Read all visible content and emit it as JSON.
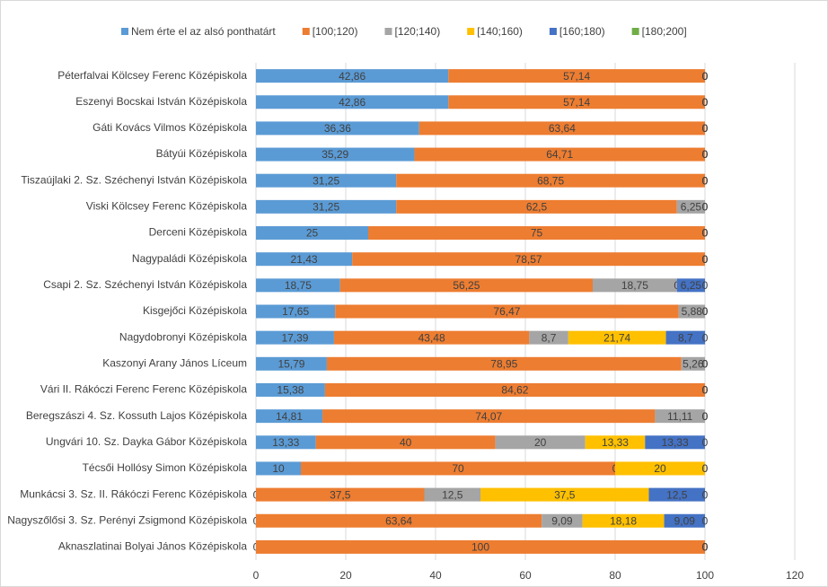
{
  "chart_data": {
    "type": "stacked-bar-horizontal",
    "categories": [
      "Péterfalvai Kölcsey Ferenc Középiskola",
      "Eszenyi Bocskai István Középiskola",
      "Gáti Kovács Vilmos Középiskola",
      "Bátyúi Középiskola",
      "Tiszaújlaki 2. Sz. Széchenyi István Középiskola",
      "Viski Kölcsey Ferenc Középiskola",
      "Derceni Középiskola",
      "Nagypaládi Középiskola",
      "Csapi 2. Sz. Széchenyi István Középiskola",
      "Kisgejőci Középiskola",
      "Nagydobronyi Középiskola",
      "Kaszonyi Arany János Líceum",
      "Vári II. Rákóczi Ferenc Ferenc Középiskola",
      "Beregszászi 4. Sz. Kossuth Lajos Középiskola",
      "Ungvári 10. Sz. Dayka Gábor Középiskola",
      "Técsői Hollósy Simon Középiskola",
      "Munkácsi 3. Sz. II. Rákóczi Ferenc Középiskola",
      "Nagyszőlősi 3. Sz. Perényi Zsigmond Középiskola",
      "Aknaszlatinai  Bolyai János Középiskola"
    ],
    "series": [
      {
        "name": "Nem érte el az alsó ponthatárt",
        "color": "#5b9bd5",
        "values": [
          42.86,
          42.86,
          36.36,
          35.29,
          31.25,
          31.25,
          25,
          21.43,
          18.75,
          17.65,
          17.39,
          15.79,
          15.38,
          14.81,
          13.33,
          10,
          0,
          0,
          0
        ],
        "value_labels": [
          "42,86",
          "42,86",
          "36,36",
          "35,29",
          "31,25",
          "31,25",
          "25",
          "21,43",
          "18,75",
          "17,65",
          "17,39",
          "15,79",
          "15,38",
          "14,81",
          "13,33",
          "10",
          "0",
          "0",
          "0"
        ]
      },
      {
        "name": "[100;120)",
        "color": "#ed7d31",
        "values": [
          57.14,
          57.14,
          63.64,
          64.71,
          68.75,
          62.5,
          75,
          78.57,
          56.25,
          76.47,
          43.48,
          78.95,
          84.62,
          74.07,
          40,
          70,
          37.5,
          63.64,
          100
        ],
        "value_labels": [
          "57,14",
          "57,14",
          "63,64",
          "64,71",
          "68,75",
          "62,5",
          "75",
          "78,57",
          "56,25",
          "76,47",
          "43,48",
          "78,95",
          "84,62",
          "74,07",
          "40",
          "70",
          "37,5",
          "63,64",
          "100"
        ]
      },
      {
        "name": "[120;140)",
        "color": "#a5a5a5",
        "values": [
          0,
          0,
          0,
          0,
          0,
          6.25,
          0,
          0,
          18.75,
          5.88,
          8.7,
          5.26,
          0,
          11.11,
          20,
          0,
          12.5,
          9.09,
          0
        ],
        "value_labels": [
          "0",
          "0",
          "0",
          "0",
          "0",
          "6,25",
          "0",
          "0",
          "18,75",
          "5,88",
          "8,7",
          "5,26",
          "0",
          "11,11",
          "20",
          "0",
          "12,5",
          "9,09",
          "0"
        ]
      },
      {
        "name": "[140;160)",
        "color": "#ffc000",
        "values": [
          0,
          0,
          0,
          0,
          0,
          0,
          0,
          0,
          0,
          0,
          21.74,
          0,
          0,
          0,
          13.33,
          20,
          37.5,
          18.18,
          0
        ],
        "value_labels": [
          "0",
          "0",
          "0",
          "0",
          "0",
          "0",
          "0",
          "0",
          "0",
          "0",
          "21,74",
          "0",
          "0",
          "0",
          "13,33",
          "20",
          "37,5",
          "18,18",
          "0"
        ]
      },
      {
        "name": "[160;180)",
        "color": "#4472c4",
        "values": [
          0,
          0,
          0,
          0,
          0,
          0,
          0,
          0,
          6.25,
          0,
          8.7,
          0,
          0,
          0,
          13.33,
          0,
          12.5,
          9.09,
          0
        ],
        "value_labels": [
          "0",
          "0",
          "0",
          "0",
          "0",
          "0",
          "0",
          "0",
          "6,25",
          "0",
          "8,7",
          "0",
          "0",
          "0",
          "13,33",
          "0",
          "12,5",
          "9,09",
          "0"
        ]
      },
      {
        "name": "[180;200]",
        "color": "#70ad47",
        "values": [
          0,
          0,
          0,
          0,
          0,
          0,
          0,
          0,
          0,
          0,
          0,
          0,
          0,
          0,
          0,
          0,
          0,
          0,
          0
        ],
        "value_labels": [
          "0",
          "0",
          "0",
          "0",
          "0",
          "0",
          "0",
          "0",
          "0",
          "0",
          "0",
          "0",
          "0",
          "0",
          "0",
          "0",
          "0",
          "0",
          "0"
        ]
      }
    ],
    "xlim": [
      0,
      120
    ],
    "xticks": [
      0,
      20,
      40,
      60,
      80,
      100,
      120
    ],
    "grid": true,
    "legend": "top"
  }
}
